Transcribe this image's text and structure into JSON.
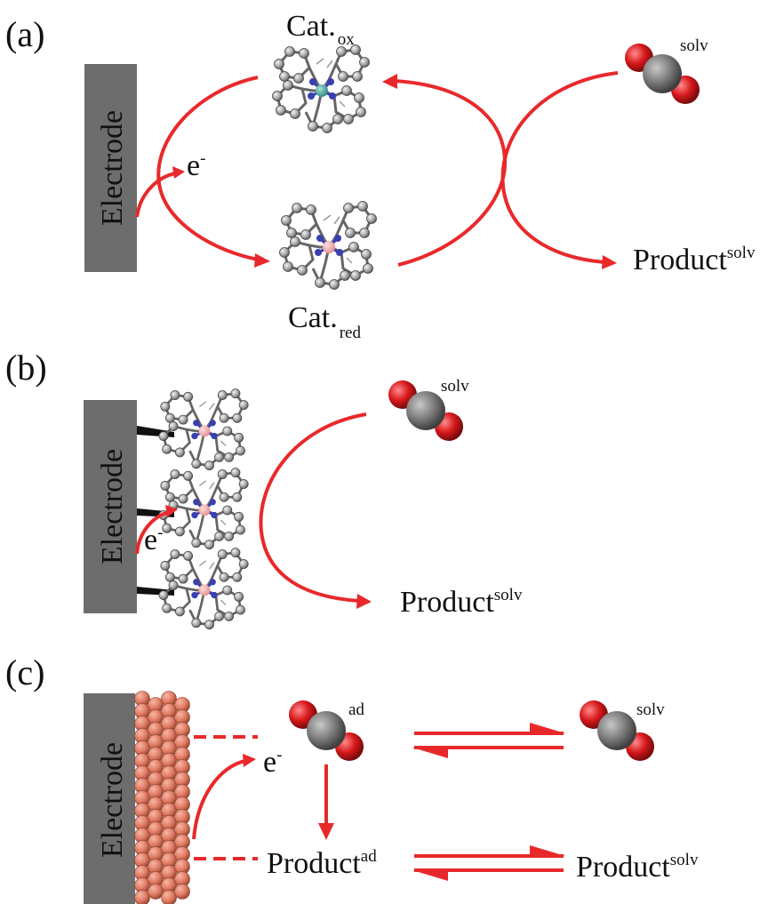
{
  "panels": {
    "a": {
      "label": "(a)",
      "electrode": "Electrode",
      "cat_ox": "Cat.",
      "cat_ox_sub": "ox",
      "cat_red": "Cat.",
      "cat_red_sub": "red",
      "electron": "e",
      "electron_sup": "-",
      "reactant_sup": "solv",
      "product": "Product",
      "product_sup": "solv"
    },
    "b": {
      "label": "(b)",
      "electrode": "Electrode",
      "electron": "e",
      "electron_sup": "-",
      "reactant_sup": "solv",
      "product": "Product",
      "product_sup": "solv"
    },
    "c": {
      "label": "(c)",
      "electrode": "Electrode",
      "electron": "e",
      "electron_sup": "-",
      "reactant_ad_sup": "ad",
      "reactant_solv_sup": "solv",
      "product_ad": "Product",
      "product_ad_sup": "ad",
      "product_solv": "Product",
      "product_solv_sup": "solv"
    }
  },
  "colors": {
    "arrow": "#e8292b",
    "electrode": "#6d6d6d",
    "oxygen": "#d7191c",
    "carbon": "#808080",
    "surface_atom": "#e07a62",
    "metal_ox": "#3b9b8f",
    "metal_red": "#f2a3a3",
    "nitrogen": "#3a3fb0"
  },
  "icons": {
    "co2": "co2-molecule-icon",
    "catalyst": "catalyst-complex-icon"
  }
}
